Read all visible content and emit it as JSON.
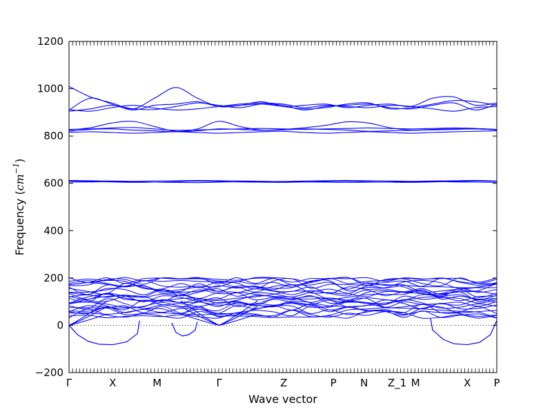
{
  "chart_data": {
    "type": "line",
    "title": "",
    "xlabel": "Wave vector",
    "ylabel": {
      "prefix": "Frequency (",
      "unit_base": "cm",
      "unit_exp": "−1",
      "suffix": ")"
    },
    "ylim": [
      -200,
      1200
    ],
    "yticks": [
      "−200",
      "0",
      "200",
      "400",
      "600",
      "800",
      "1000",
      "1200"
    ],
    "ytick_values": [
      -200,
      0,
      200,
      400,
      600,
      800,
      1000,
      1200
    ],
    "x_range": [
      0,
      10
    ],
    "high_symmetry_points": [
      {
        "label": "Γ",
        "x": 0
      },
      {
        "label": "X",
        "x": 1.02
      },
      {
        "label": "M",
        "x": 2.06
      },
      {
        "label": "Γ",
        "x": 3.51
      },
      {
        "label": "Z",
        "x": 5.02
      },
      {
        "label": "P",
        "x": 6.18
      },
      {
        "label": "N",
        "x": 6.9
      },
      {
        "label": "Z_1",
        "x": 7.67
      },
      {
        "label": "M",
        "x": 8.1
      },
      {
        "label": "X",
        "x": 9.31
      },
      {
        "label": "P",
        "x": 10
      }
    ],
    "zero_line": true,
    "line_color": "#0000ff",
    "optical_groups": [
      {
        "kind": "flat",
        "base": 905,
        "variants": [
          [
            910,
            960,
            935,
            910,
            930,
            935,
            945,
            925,
            930,
            935,
            925,
            915,
            920,
            935,
            940,
            915,
            920,
            935,
            950,
            945,
            930
          ],
          [
            905,
            915,
            930,
            915,
            912,
            925,
            940,
            930,
            920,
            935,
            930,
            910,
            925,
            930,
            935,
            920,
            915,
            930,
            940,
            910,
            935
          ],
          [
            1010,
            965,
            940,
            915,
            960,
            1005,
            960,
            925,
            930,
            945,
            925,
            930,
            935,
            920,
            930,
            935,
            925,
            960,
            965,
            930,
            940
          ],
          [
            912,
            905,
            920,
            930,
            918,
            910,
            915,
            925,
            935,
            940,
            935,
            920,
            930,
            925,
            920,
            930,
            925,
            915,
            905,
            920,
            925
          ]
        ]
      },
      {
        "kind": "flat",
        "base": 820,
        "variants": [
          [
            825,
            835,
            855,
            862,
            840,
            820,
            830,
            862,
            840,
            825,
            828,
            835,
            845,
            860,
            855,
            835,
            825,
            828,
            830,
            830,
            828
          ],
          [
            820,
            828,
            830,
            825,
            822,
            818,
            822,
            830,
            828,
            824,
            826,
            830,
            828,
            825,
            820,
            822,
            824,
            826,
            828,
            830,
            826
          ],
          [
            815,
            818,
            815,
            812,
            815,
            818,
            815,
            812,
            815,
            818,
            820,
            815,
            812,
            815,
            818,
            815,
            812,
            815,
            818,
            820,
            822
          ],
          [
            828,
            830,
            834,
            836,
            830,
            824,
            826,
            828,
            830,
            832,
            830,
            828,
            830,
            832,
            834,
            832,
            830,
            832,
            834,
            832,
            828
          ]
        ]
      },
      {
        "kind": "flat",
        "base": 605,
        "variants": [
          [
            610,
            608,
            606,
            604,
            605,
            607,
            609,
            608,
            606,
            605,
            604,
            606,
            608,
            609,
            607,
            605,
            604,
            606,
            608,
            610,
            609
          ],
          [
            605,
            606,
            607,
            606,
            605,
            604,
            603,
            605,
            607,
            608,
            607,
            606,
            605,
            604,
            605,
            606,
            607,
            608,
            606,
            605,
            604
          ],
          [
            612,
            611,
            610,
            609,
            610,
            611,
            612,
            611,
            610,
            609,
            608,
            610,
            611,
            612,
            611,
            610,
            609,
            610,
            611,
            612,
            610
          ]
        ]
      }
    ],
    "acoustic_soft_modes": [
      {
        "x": [
          0,
          0.2,
          0.45,
          0.7,
          1.02,
          1.35,
          1.6,
          1.65
        ],
        "y": [
          0,
          -40,
          -68,
          -80,
          -82,
          -70,
          -35,
          20
        ]
      },
      {
        "x": [
          2.4,
          2.5,
          2.65,
          2.8,
          2.95,
          3.0
        ],
        "y": [
          10,
          -30,
          -45,
          -40,
          -20,
          15
        ]
      },
      {
        "x": [
          8.45,
          8.5,
          8.75,
          9.0,
          9.31,
          9.6,
          9.85,
          10
        ],
        "y": [
          30,
          -20,
          -60,
          -78,
          -82,
          -72,
          -40,
          20
        ]
      }
    ]
  }
}
